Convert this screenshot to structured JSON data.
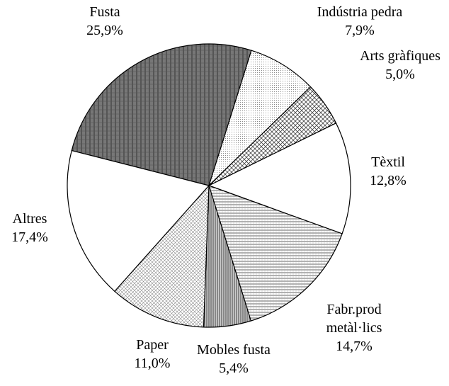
{
  "chart_data": {
    "type": "pie",
    "categories": [
      "Fusta",
      "Indústria pedra",
      "Arts gràfiques",
      "Tèxtil",
      "Fabr.prod metàl·lics",
      "Mobles fusta",
      "Paper",
      "Altres"
    ],
    "values": [
      25.9,
      7.9,
      5.0,
      12.8,
      14.7,
      5.4,
      11.0,
      17.4
    ],
    "value_labels": [
      "25,9%",
      "7,9%",
      "5,0%",
      "12,8%",
      "14,7%",
      "5,4%",
      "11,0%",
      "17,4%"
    ]
  }
}
